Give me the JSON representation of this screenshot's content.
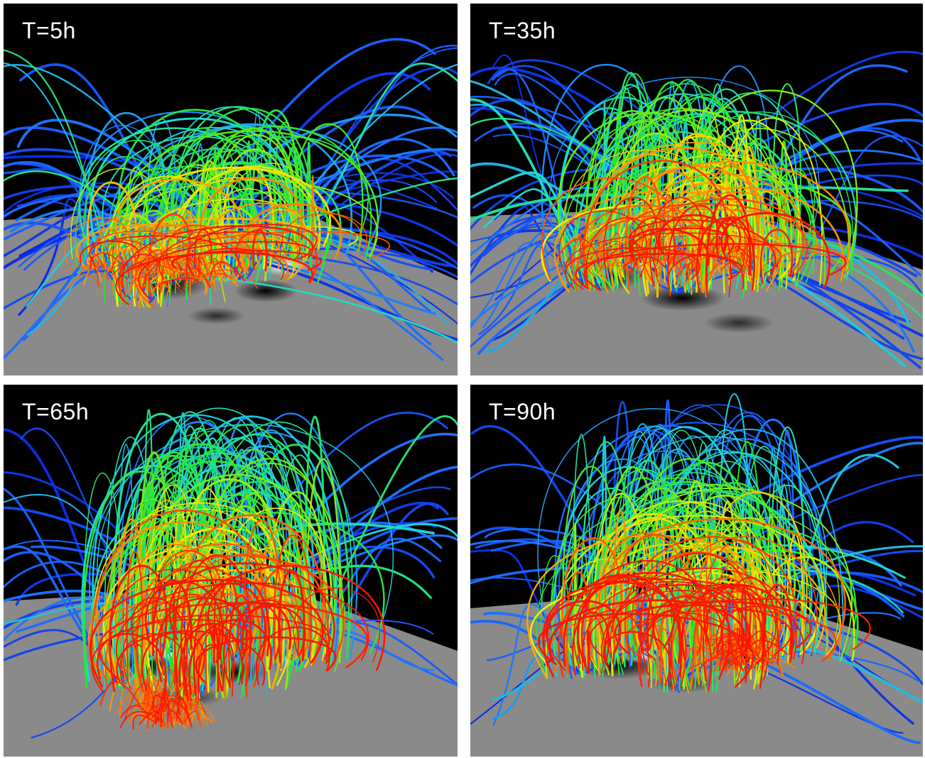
{
  "panels": [
    {
      "label": "T=5h"
    },
    {
      "label": "T=35h"
    },
    {
      "label": "T=65h"
    },
    {
      "label": "T=90h"
    }
  ],
  "colors": {
    "background": "#000000",
    "surface": "#8a8a8a",
    "line_low": "#0a2be0",
    "line_mid": "#22d9d0",
    "line_high": "#ff1400"
  }
}
